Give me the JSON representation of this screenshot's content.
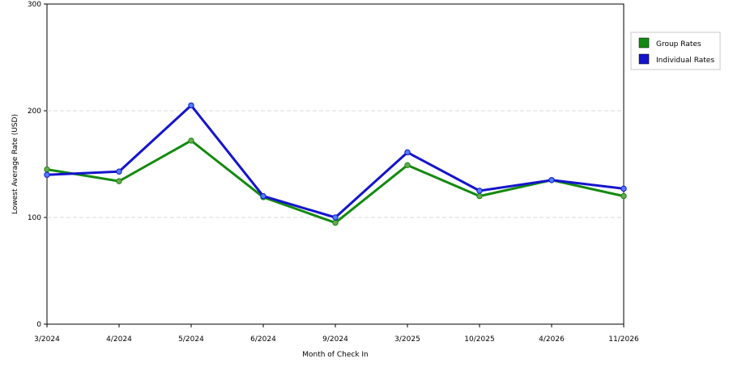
{
  "chart_data": {
    "type": "line",
    "title": "",
    "xlabel": "Month of Check In",
    "ylabel": "Lowest Average Rate (USD)",
    "categories": [
      "3/2024",
      "4/2024",
      "5/2024",
      "6/2024",
      "9/2024",
      "3/2025",
      "10/2025",
      "4/2026",
      "11/2026"
    ],
    "ylim": [
      0,
      300
    ],
    "yticks": [
      0,
      100,
      200,
      300
    ],
    "grid": "horizontal dashed at 100 and 200",
    "legend_position": "right",
    "series": [
      {
        "name": "Group Rates",
        "color": "#138a0f",
        "marker_color": "#6aa84f",
        "values": [
          145,
          134,
          172,
          119,
          95,
          149,
          120,
          135,
          120
        ]
      },
      {
        "name": "Individual Rates",
        "color": "#1414cc",
        "marker_color": "#4f7fff",
        "values": [
          140,
          143,
          205,
          120,
          100,
          161,
          125,
          135,
          127
        ]
      }
    ]
  }
}
